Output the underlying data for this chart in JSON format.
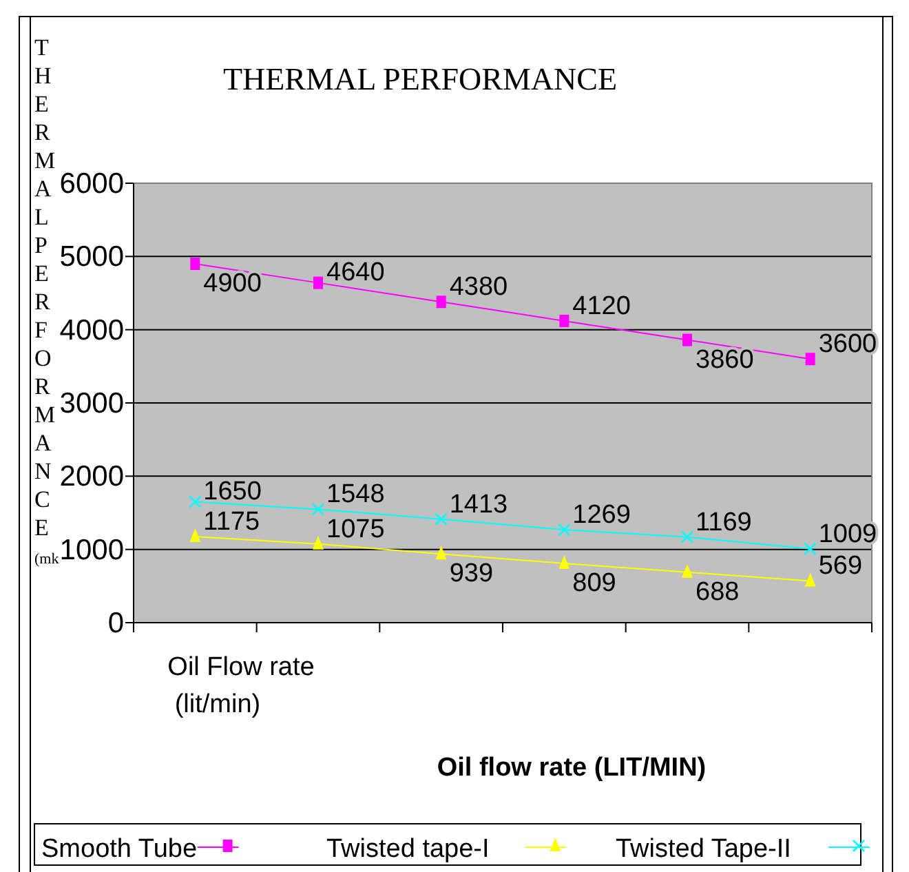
{
  "chart_data": {
    "type": "line",
    "title": "THERMAL PERFORMANCE",
    "xlabel": "Oil flow rate (LIT/MIN)",
    "ylabel": "THERMALPERFORMANCE (mk",
    "annotations": [
      "Oil Flow rate (lit/min)"
    ],
    "categories": [
      null,
      null,
      null,
      null,
      null,
      null
    ],
    "series": [
      {
        "name": "Smooth Tube",
        "color": "#ff00ff",
        "marker": "square",
        "values": [
          4900,
          4640,
          4380,
          4120,
          3860,
          3600
        ]
      },
      {
        "name": "Twisted tape-I",
        "color": "#ffff00",
        "marker": "triangle",
        "values": [
          1175,
          1075,
          939,
          809,
          688,
          569
        ]
      },
      {
        "name": "Twisted Tape-II",
        "color": "#00ffff",
        "marker": "cross",
        "values": [
          1650,
          1548,
          1413,
          1269,
          1169,
          1009
        ]
      }
    ],
    "ylim": [
      0,
      6000
    ],
    "yticks": [
      0,
      1000,
      2000,
      3000,
      4000,
      5000,
      6000
    ],
    "grid": "y",
    "legend": "bottom",
    "data_labels": true
  }
}
